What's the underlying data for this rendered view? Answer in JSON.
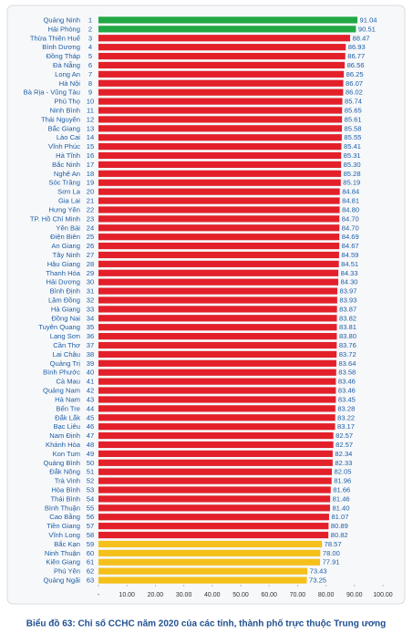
{
  "chart_data": {
    "type": "hbar",
    "title": "Biểu đồ 63: Chỉ số CCHC năm 2020 của các tỉnh, thành phố trực thuộc Trung ương",
    "categories": [
      "Quảng Ninh",
      "Hải Phòng",
      "Thừa Thiên Huế",
      "Bình Dương",
      "Đồng Tháp",
      "Đà Nẵng",
      "Long An",
      "Hà Nội",
      "Bà Rịa - Vũng Tàu",
      "Phú Thọ",
      "Ninh Bình",
      "Thái Nguyên",
      "Bắc Giang",
      "Lào Cai",
      "Vĩnh Phúc",
      "Hà Tĩnh",
      "Bắc Ninh",
      "Nghệ An",
      "Sóc Trăng",
      "Sơn La",
      "Gia Lai",
      "Hưng Yên",
      "TP. Hồ Chí Minh",
      "Yên Bái",
      "Điện Biên",
      "An Giang",
      "Tây Ninh",
      "Hậu Giang",
      "Thanh Hóa",
      "Hải Dương",
      "Bình Định",
      "Lâm Đồng",
      "Hà Giang",
      "Đồng Nai",
      "Tuyên Quang",
      "Lạng Sơn",
      "Cần Thơ",
      "Lai Châu",
      "Quảng Trị",
      "Bình Phước",
      "Cà Mau",
      "Quảng Nam",
      "Hà Nam",
      "Bến Tre",
      "Đắk Lắk",
      "Bạc Liêu",
      "Nam Định",
      "Khánh Hòa",
      "Kon Tum",
      "Quảng Bình",
      "Đắk Nông",
      "Trà Vinh",
      "Hòa Bình",
      "Thái Bình",
      "Bình Thuận",
      "Cao Bằng",
      "Tiền Giang",
      "Vĩnh Long",
      "Bắc Kạn",
      "Ninh Thuận",
      "Kiên Giang",
      "Phú Yên",
      "Quảng Ngãi"
    ],
    "ranks": [
      1,
      2,
      3,
      4,
      5,
      6,
      7,
      8,
      9,
      10,
      11,
      12,
      13,
      14,
      15,
      16,
      17,
      18,
      19,
      20,
      21,
      22,
      23,
      24,
      25,
      26,
      27,
      28,
      29,
      30,
      31,
      32,
      33,
      34,
      35,
      36,
      37,
      38,
      39,
      40,
      41,
      42,
      43,
      44,
      45,
      46,
      47,
      48,
      49,
      50,
      51,
      52,
      53,
      54,
      55,
      56,
      57,
      58,
      59,
      60,
      61,
      62,
      63
    ],
    "values": [
      91.04,
      90.51,
      88.47,
      86.93,
      86.77,
      86.56,
      86.25,
      86.07,
      86.02,
      85.74,
      85.65,
      85.61,
      85.58,
      85.55,
      85.41,
      85.31,
      85.3,
      85.28,
      85.19,
      84.84,
      84.81,
      84.8,
      84.7,
      84.7,
      84.69,
      84.67,
      84.59,
      84.51,
      84.33,
      84.3,
      83.97,
      83.93,
      83.87,
      83.82,
      83.81,
      83.8,
      83.76,
      83.72,
      83.64,
      83.58,
      83.46,
      83.46,
      83.45,
      83.28,
      83.22,
      83.17,
      82.57,
      82.57,
      82.34,
      82.33,
      82.05,
      81.96,
      81.66,
      81.46,
      81.4,
      81.07,
      80.89,
      80.82,
      78.57,
      78,
      77.91,
      73.43,
      73.25
    ],
    "value_labels": [
      "91.04",
      "90.51",
      "88.47",
      "86.93",
      "86.77",
      "86.56",
      "86.25",
      "86.07",
      "86.02",
      "85.74",
      "85.65",
      "85.61",
      "85.58",
      "85.55",
      "85.41",
      "85.31",
      "85.30",
      "85.28",
      "85.19",
      "84.84",
      "84.81",
      "84.80",
      "84.70",
      "84.70",
      "84.69",
      "84.67",
      "84.59",
      "84.51",
      "84.33",
      "84.30",
      "83.97",
      "83.93",
      "83.87",
      "83.82",
      "83.81",
      "83.80",
      "83.76",
      "83.72",
      "83.64",
      "83.58",
      "83.46",
      "83.46",
      "83.45",
      "83.28",
      "83.22",
      "83.17",
      "82.57",
      "82.57",
      "82.34",
      "82.33",
      "82.05",
      "81.96",
      "81.66",
      "81.46",
      "81.40",
      "81.07",
      "80.89",
      "80.82",
      "78.57",
      "78.00",
      "77.91",
      "73.43",
      "73.25"
    ],
    "bar_colors": [
      "#22a845",
      "#22a845",
      "#e3202a",
      "#e3202a",
      "#e3202a",
      "#e3202a",
      "#e3202a",
      "#e3202a",
      "#e3202a",
      "#e3202a",
      "#e3202a",
      "#e3202a",
      "#e3202a",
      "#e3202a",
      "#e3202a",
      "#e3202a",
      "#e3202a",
      "#e3202a",
      "#e3202a",
      "#e3202a",
      "#e3202a",
      "#e3202a",
      "#e3202a",
      "#e3202a",
      "#e3202a",
      "#e3202a",
      "#e3202a",
      "#e3202a",
      "#e3202a",
      "#e3202a",
      "#e3202a",
      "#e3202a",
      "#e3202a",
      "#e3202a",
      "#e3202a",
      "#e3202a",
      "#e3202a",
      "#e3202a",
      "#e3202a",
      "#e3202a",
      "#e3202a",
      "#e3202a",
      "#e3202a",
      "#e3202a",
      "#e3202a",
      "#e3202a",
      "#e3202a",
      "#e3202a",
      "#e3202a",
      "#e3202a",
      "#e3202a",
      "#e3202a",
      "#e3202a",
      "#e3202a",
      "#e3202a",
      "#e3202a",
      "#e3202a",
      "#e3202a",
      "#f5c01a",
      "#f5c01a",
      "#f5c01a",
      "#f5c01a",
      "#f5c01a"
    ],
    "xlim": [
      0,
      100
    ],
    "xticks": [
      {
        "value": 0,
        "label": "-"
      },
      {
        "value": 10,
        "label": "10.00"
      },
      {
        "value": 20,
        "label": "20.00"
      },
      {
        "value": 30,
        "label": "30.00"
      },
      {
        "value": 40,
        "label": "40.00"
      },
      {
        "value": 50,
        "label": "50.00"
      },
      {
        "value": 60,
        "label": "60.00"
      },
      {
        "value": 70,
        "label": "70.00"
      },
      {
        "value": 80,
        "label": "80.00"
      },
      {
        "value": 90,
        "label": "90.00"
      },
      {
        "value": 100,
        "label": "100.00"
      }
    ]
  }
}
